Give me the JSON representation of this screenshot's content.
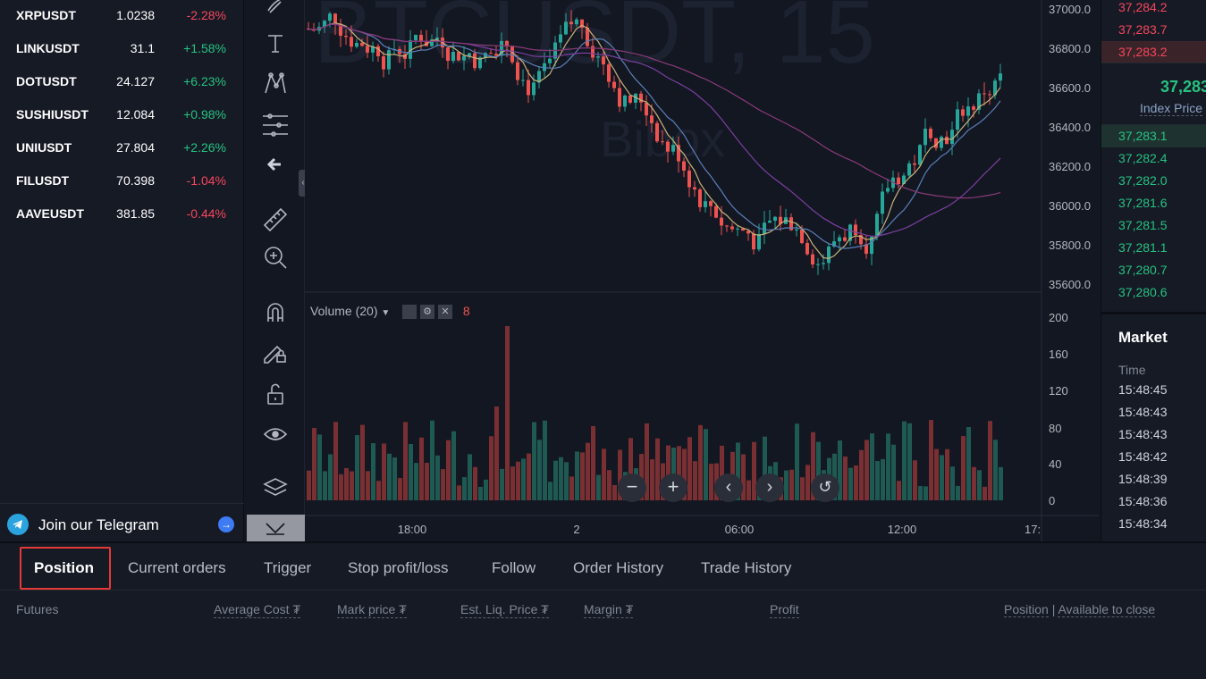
{
  "markets": [
    {
      "symbol": "XRPUSDT",
      "price": "1.0238",
      "change": "-2.28%",
      "dir": "dn"
    },
    {
      "symbol": "LINKUSDT",
      "price": "31.1",
      "change": "+1.58%",
      "dir": "up"
    },
    {
      "symbol": "DOTUSDT",
      "price": "24.127",
      "change": "+6.23%",
      "dir": "up"
    },
    {
      "symbol": "SUSHIUSDT",
      "price": "12.084",
      "change": "+0.98%",
      "dir": "up"
    },
    {
      "symbol": "UNIUSDT",
      "price": "27.804",
      "change": "+2.26%",
      "dir": "up"
    },
    {
      "symbol": "FILUSDT",
      "price": "70.398",
      "change": "-1.04%",
      "dir": "dn"
    },
    {
      "symbol": "AAVEUSDT",
      "price": "381.85",
      "change": "-0.44%",
      "dir": "dn"
    }
  ],
  "telegram": {
    "label": "Join our Telegram"
  },
  "chart": {
    "watermark": "BTCUSDT, 15",
    "watermark2": "Bibox",
    "price_ticks": [
      "37000.0",
      "36800.0",
      "36600.0",
      "36400.0",
      "36200.0",
      "36000.0",
      "35800.0",
      "35600.0"
    ],
    "volume_label": "Volume (20)",
    "volume_value": "8",
    "volume_ticks": [
      "200",
      "160",
      "120",
      "80",
      "40",
      "0"
    ],
    "time_ticks": [
      "18:00",
      "2",
      "06:00",
      "12:00",
      "17:"
    ]
  },
  "book": {
    "asks": [
      "37,284.2",
      "37,283.7",
      "37,283.2"
    ],
    "last_price": "37,283",
    "index_label": "Index Price",
    "bids": [
      "37,283.1",
      "37,282.4",
      "37,282.0",
      "37,281.6",
      "37,281.5",
      "37,281.1",
      "37,280.7",
      "37,280.6"
    ],
    "market_title": "Market",
    "time_label": "Time",
    "times": [
      "15:48:45",
      "15:48:43",
      "15:48:43",
      "15:48:42",
      "15:48:39",
      "15:48:36",
      "15:48:34"
    ]
  },
  "tabs": [
    "Position",
    "Current orders",
    "Trigger",
    "Stop profit/loss",
    "Follow",
    "Order History",
    "Trade History"
  ],
  "columns": {
    "futures": "Futures",
    "avg_cost": "Average Cost",
    "mark_price": "Mark price",
    "liq_price": "Est. Liq. Price",
    "margin": "Margin",
    "profit": "Profit",
    "position": "Position",
    "sep": "|",
    "available": "Available to close",
    "currency_symbol": "₮"
  },
  "colors": {
    "up": "#26a69a",
    "down": "#ef5350",
    "highlight": "#e53935"
  }
}
